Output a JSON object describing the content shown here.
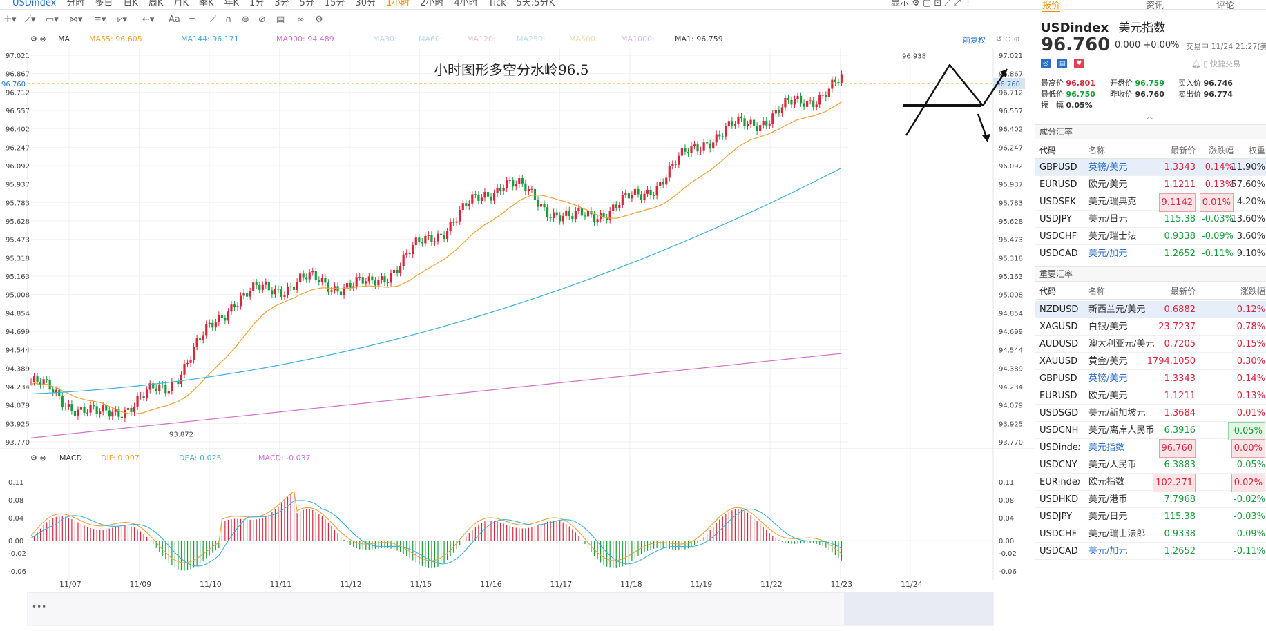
{
  "topbar": {
    "symbol": "USDindex",
    "periods": [
      "分时",
      "多日",
      "日K",
      "周K",
      "月K",
      "季K",
      "年K",
      "1分",
      "3分",
      "5分",
      "15分",
      "30分",
      "1小时",
      "2小时",
      "4小时",
      "Tick",
      "5天:5分K"
    ],
    "active": "1小时",
    "display": "显示"
  },
  "legend": {
    "ma_label": "MA",
    "ma55": "MA55: 96.605",
    "ma144": "MA144: 96.171",
    "ma900": "MA900: 94.489",
    "ma30": "MA30:",
    "ma60": "MA60:",
    "ma120": "MA120:",
    "ma250": "MA250:",
    "ma500": "MA500:",
    "ma1000": "MA1000:",
    "ma1": "MA1: 96.759",
    "restore": "前复权"
  },
  "macd_legend": {
    "label": "MACD",
    "dif": "DIF: 0.007",
    "dea": "DEA: 0.025",
    "macd": "MACD: -0.037"
  },
  "annotation": "小时图形多空分水岭96.5",
  "price_axis": [
    "97.021",
    "96.867",
    "96.712",
    "96.557",
    "96.402",
    "96.247",
    "96.092",
    "95.937",
    "95.783",
    "95.628",
    "95.473",
    "95.318",
    "95.163",
    "95.008",
    "94.854",
    "94.699",
    "94.544",
    "94.389",
    "94.234",
    "94.079",
    "93.925",
    "93.770"
  ],
  "current_price_tag": "96.760",
  "high_label": "96.938",
  "low_label": "93.872",
  "macd_axis": [
    "0.11",
    "0.08",
    "0.04",
    "0.00",
    "-0.02",
    "-0.06"
  ],
  "dates": [
    "11/07",
    "11/09",
    "11/10",
    "11/11",
    "11/12",
    "11/15",
    "11/16",
    "11/17",
    "11/18",
    "11/19",
    "11/22",
    "11/23",
    "11/24"
  ],
  "colors": {
    "up": "#d7263d",
    "down": "#1a9c3a",
    "ma55": "#f0a030",
    "ma144": "#3ab0d8",
    "ma900": "#d070c8",
    "accent": "#f08c00"
  },
  "chart_data": {
    "type": "candlestick",
    "title": "小时图形多空分水岭96.5",
    "x": [
      "11/07",
      "11/09",
      "11/10",
      "11/11",
      "11/12",
      "11/15",
      "11/16",
      "11/17",
      "11/18",
      "11/19",
      "11/22",
      "11/23",
      "11/24"
    ],
    "close": [
      94.25,
      93.95,
      94.2,
      94.95,
      95.1,
      95.05,
      95.5,
      95.95,
      95.6,
      95.8,
      96.3,
      96.5,
      96.76
    ],
    "ma55_last": 96.605,
    "ma144_last": 96.171,
    "ma900_last": 94.489,
    "high": 96.938,
    "low": 93.872,
    "ylim": [
      93.77,
      97.021
    ]
  },
  "panel": {
    "tabs": [
      "报价",
      "资讯",
      "评论"
    ],
    "code": "USDindex",
    "name": "美元指数",
    "price": "96.760",
    "change": "0.000 +0.00%",
    "time": "交易中 11/24 21:27(美东",
    "fast": "快捷交易",
    "stats": [
      {
        "label": "最高价",
        "value": "96.801",
        "color": "red"
      },
      {
        "label": "开盘价",
        "value": "96.759",
        "color": "green"
      },
      {
        "label": "买入价",
        "value": "96.746",
        "color": ""
      },
      {
        "label": "最低价",
        "value": "96.750",
        "color": "green"
      },
      {
        "label": "昨收价",
        "value": "96.760",
        "color": ""
      },
      {
        "label": "卖出价",
        "value": "96.774",
        "color": ""
      },
      {
        "label": "振　幅",
        "value": "0.05%",
        "color": ""
      }
    ],
    "sec1": "成分汇率",
    "sec2": "重要汇率",
    "head1": [
      "代码",
      "名称",
      "最新价",
      "涨跌幅",
      "权重"
    ],
    "head2": [
      "代码",
      "名称",
      "最新价",
      "涨跌幅"
    ],
    "comp": [
      [
        "GBPUSD",
        "英镑/美元",
        "1.3343",
        "0.14%",
        "11.90%"
      ],
      [
        "EURUSD",
        "欧元/美元",
        "1.1211",
        "0.13%",
        "57.60%"
      ],
      [
        "USDSEK",
        "美元/瑞典克",
        "9.1142",
        "0.01%",
        "4.20%"
      ],
      [
        "USDJPY",
        "美元/日元",
        "115.38",
        "-0.03%",
        "13.60%"
      ],
      [
        "USDCHF",
        "美元/瑞士法",
        "0.9338",
        "-0.09%",
        "3.60%"
      ],
      [
        "USDCAD",
        "美元/加元",
        "1.2652",
        "-0.11%",
        "9.10%"
      ]
    ],
    "major": [
      [
        "NZDUSD",
        "新西兰元/美元",
        "0.6882",
        "0.12%"
      ],
      [
        "XAGUSD",
        "白银/美元",
        "23.7237",
        "0.78%"
      ],
      [
        "AUDUSD",
        "澳大利亚元/美元",
        "0.7205",
        "0.15%"
      ],
      [
        "XAUUSD",
        "黄金/美元",
        "1794.1050",
        "0.30%"
      ],
      [
        "GBPUSD",
        "英镑/美元",
        "1.3343",
        "0.14%"
      ],
      [
        "EURUSD",
        "欧元/美元",
        "1.1211",
        "0.13%"
      ],
      [
        "USDSGD",
        "美元/新加坡元",
        "1.3684",
        "0.01%"
      ],
      [
        "USDCNH",
        "美元/离岸人民币",
        "6.3916",
        "-0.05%"
      ],
      [
        "USDindex",
        "美元指数",
        "96.760",
        "0.00%"
      ],
      [
        "USDCNY",
        "美元/人民币",
        "6.3883",
        "-0.05%"
      ],
      [
        "EURindex",
        "欧元指数",
        "102.271",
        "0.02%"
      ],
      [
        "USDHKD",
        "美元/港币",
        "7.7968",
        "-0.02%"
      ],
      [
        "USDJPY",
        "美元/日元",
        "115.38",
        "-0.03%"
      ],
      [
        "USDCHF",
        "美元/瑞士法郎",
        "0.9338",
        "-0.09%"
      ],
      [
        "USDCAD",
        "美元/加元",
        "1.2652",
        "-0.11%"
      ]
    ]
  }
}
